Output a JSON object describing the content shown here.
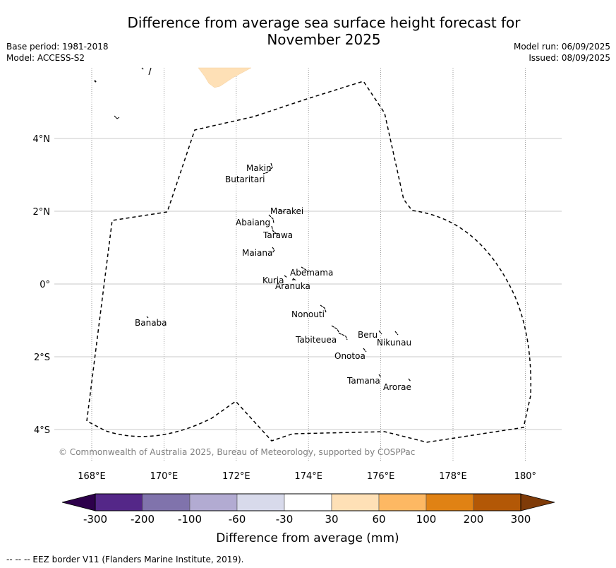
{
  "title": "Difference from average sea surface height forecast for November 2025",
  "title_line1": "Difference from average sea surface height forecast for",
  "title_line2": "November 2025",
  "base_period": "Base period: 1981-2018",
  "model": "Model: ACCESS-S2",
  "model_run": "Model run: 06/09/2025",
  "issued": "Issued: 08/09/2025",
  "copyright": "© Commonwealth of Australia 2025, Bureau of Meteorology, supported by COSPPac",
  "eez_note": "--  --  -- EEZ border V11 (Flanders Marine Institute, 2019).",
  "map": {
    "lon_range": [
      167,
      181
    ],
    "lat_range": [
      -5,
      6
    ],
    "lon_ticks": [
      {
        "value": 168,
        "label": "168°E"
      },
      {
        "value": 170,
        "label": "170°E"
      },
      {
        "value": 172,
        "label": "172°E"
      },
      {
        "value": 174,
        "label": "174°E"
      },
      {
        "value": 176,
        "label": "176°E"
      },
      {
        "value": 178,
        "label": "178°E"
      },
      {
        "value": 180,
        "label": "180°"
      }
    ],
    "lat_ticks": [
      {
        "value": 4,
        "label": "4°N"
      },
      {
        "value": 2,
        "label": "2°N"
      },
      {
        "value": 0,
        "label": "0°"
      },
      {
        "value": -2,
        "label": "2°S"
      },
      {
        "value": -4,
        "label": "4°S"
      }
    ],
    "field_category": "30 to 60",
    "islands": [
      {
        "name": "Makin",
        "lon": 173.0,
        "lat": 3.25
      },
      {
        "name": "Butaritari",
        "lon": 172.9,
        "lat": 3.05
      },
      {
        "name": "Marakei",
        "lon": 173.3,
        "lat": 2.0
      },
      {
        "name": "Abaiang",
        "lon": 172.9,
        "lat": 1.8
      },
      {
        "name": "Tarawa",
        "lon": 173.0,
        "lat": 1.4
      },
      {
        "name": "Maiana",
        "lon": 173.0,
        "lat": 0.95
      },
      {
        "name": "Abemama",
        "lon": 173.85,
        "lat": 0.4
      },
      {
        "name": "Kuria",
        "lon": 173.4,
        "lat": 0.22
      },
      {
        "name": "Aranuka",
        "lon": 173.6,
        "lat": 0.15
      },
      {
        "name": "Banaba",
        "lon": 169.5,
        "lat": -0.9
      },
      {
        "name": "Nonouti",
        "lon": 174.5,
        "lat": -0.7
      },
      {
        "name": "Tabiteuea",
        "lon": 174.8,
        "lat": -1.3
      },
      {
        "name": "Beru",
        "lon": 176.0,
        "lat": -1.35
      },
      {
        "name": "Nikunau",
        "lon": 176.45,
        "lat": -1.35
      },
      {
        "name": "Onotoa",
        "lon": 175.55,
        "lat": -1.85
      },
      {
        "name": "Tamana",
        "lon": 176.0,
        "lat": -2.5
      },
      {
        "name": "Arorae",
        "lon": 176.8,
        "lat": -2.65
      }
    ]
  },
  "colorbar": {
    "label": "Difference from average (mm)",
    "ticks": [
      "-300",
      "-200",
      "-100",
      "-60",
      "-30",
      "30",
      "60",
      "100",
      "200",
      "300"
    ],
    "colors": {
      "under": "#2d004b",
      "bins": [
        "#542788",
        "#8073ac",
        "#b2abd2",
        "#d8daeb",
        "#ffffff",
        "#fee0b6",
        "#fdb863",
        "#e08214",
        "#b35806"
      ],
      "over": "#7f3b08"
    }
  }
}
